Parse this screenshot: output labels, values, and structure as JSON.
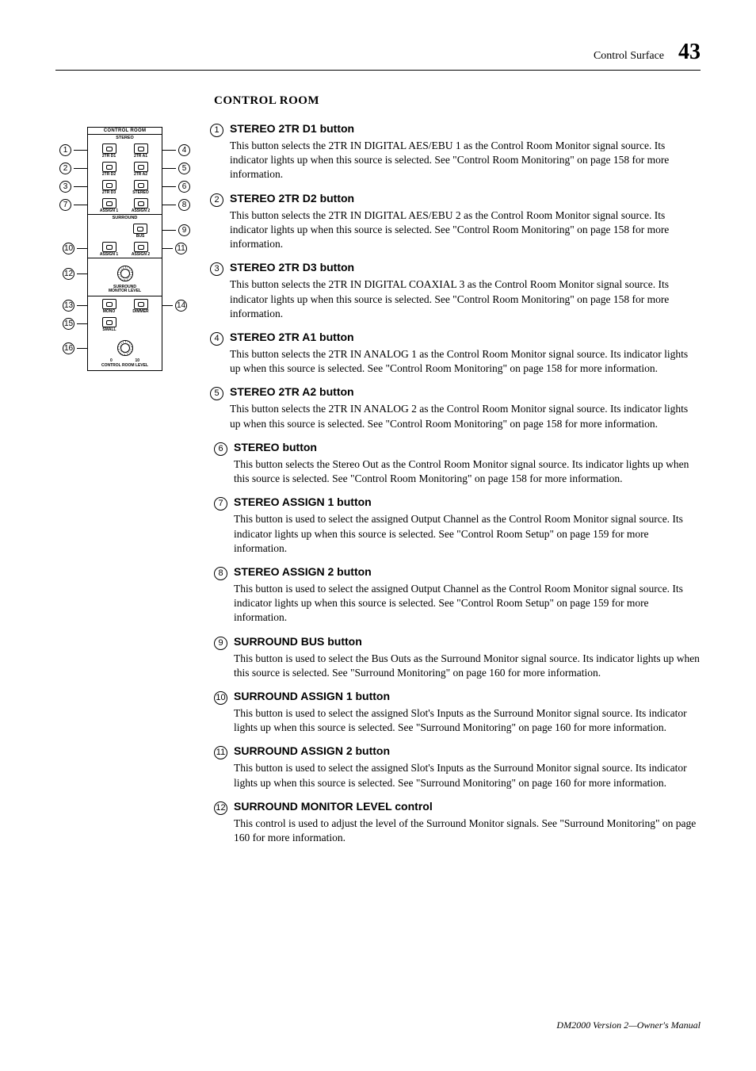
{
  "header": {
    "section": "Control Surface",
    "page": "43"
  },
  "section_title": "CONTROL ROOM",
  "footer": "DM2000 Version 2—Owner's Manual",
  "diagram": {
    "panel_title": "CONTROL ROOM",
    "stereo_title": "STEREO",
    "surround_title": "SURROUND",
    "rows": [
      {
        "left": "2TR D1",
        "right": "2TR A1"
      },
      {
        "left": "2TR D2",
        "right": "2TR A2"
      },
      {
        "left": "2TR D3",
        "right": "STEREO"
      },
      {
        "left": "ASSIGN 1",
        "right": "ASSIGN 2"
      }
    ],
    "bus_label": "BUS",
    "surround_assign": {
      "left": "ASSIGN 1",
      "right": "ASSIGN 2"
    },
    "knob1_label": "SURROUND\nMONITOR LEVEL",
    "mono_dimmer": {
      "left": "MONO",
      "right": "DIMMER"
    },
    "small_label": "SMALL",
    "knob2_label": "CONTROL ROOM LEVEL",
    "scale_min": "0",
    "scale_max": "10"
  },
  "items": [
    {
      "num": "1",
      "title": "STEREO 2TR D1 button",
      "body": "This button selects the 2TR IN DIGITAL AES/EBU 1 as the Control Room Monitor signal source. Its indicator lights up when this source is selected. See \"Control Room Monitoring\" on page 158 for more information.",
      "narrow": true
    },
    {
      "num": "2",
      "title": "STEREO 2TR D2 button",
      "body": "This button selects the 2TR IN DIGITAL AES/EBU 2 as the Control Room Monitor signal source. Its indicator lights up when this source is selected. See \"Control Room Monitoring\" on page 158 for more information.",
      "narrow": true
    },
    {
      "num": "3",
      "title": "STEREO 2TR D3 button",
      "body": "This button selects the 2TR IN DIGITAL COAXIAL 3 as the Control Room Monitor signal source. Its indicator lights up when this source is selected. See \"Control Room Monitoring\" on page 158 for more information.",
      "narrow": true
    },
    {
      "num": "4",
      "title": "STEREO 2TR A1 button",
      "body": "This button selects the 2TR IN ANALOG 1 as the Control Room Monitor signal source. Its indicator lights up when this source is selected. See \"Control Room Monitoring\" on page 158 for more information.",
      "narrow": true
    },
    {
      "num": "5",
      "title": "STEREO 2TR A2 button",
      "body": "This button selects the 2TR IN ANALOG 2 as the Control Room Monitor signal source. Its indicator lights up when this source is selected. See \"Control Room Monitoring\" on page 158 for more information.",
      "narrow": true
    },
    {
      "num": "6",
      "title": "STEREO button",
      "body": "This button selects the Stereo Out as the Control Room Monitor signal source. Its indicator lights up when this source is selected. See \"Control Room Monitoring\" on page 158 for more information.",
      "narrow": false
    },
    {
      "num": "7",
      "title": "STEREO ASSIGN 1 button",
      "body": "This button is used to select the assigned Output Channel as the Control Room Monitor signal source. Its indicator lights up when this source is selected. See \"Control Room Setup\" on page 159 for more information.",
      "narrow": false
    },
    {
      "num": "8",
      "title": "STEREO ASSIGN 2 button",
      "body": "This button is used to select the assigned Output Channel as the Control Room Monitor signal source. Its indicator lights up when this source is selected. See \"Control Room Setup\" on page 159 for more information.",
      "narrow": false
    },
    {
      "num": "9",
      "title": "SURROUND BUS button",
      "body": "This button is used to select the Bus Outs as the Surround Monitor signal source. Its indicator lights up when this source is selected. See \"Surround Monitoring\" on page 160 for more information.",
      "narrow": false
    },
    {
      "num": "10",
      "title": "SURROUND ASSIGN 1 button",
      "body": "This button is used to select the assigned Slot's Inputs as the Surround Monitor signal source. Its indicator lights up when this source is selected. See \"Surround Monitoring\" on page 160 for more information.",
      "narrow": false
    },
    {
      "num": "11",
      "title": "SURROUND ASSIGN 2 button",
      "body": "This button is used to select the assigned Slot's Inputs as the Surround Monitor signal source. Its indicator lights up when this source is selected. See \"Surround Monitoring\" on page 160 for more information.",
      "narrow": false
    },
    {
      "num": "12",
      "title": "SURROUND MONITOR LEVEL control",
      "body": "This control is used to adjust the level of the Surround Monitor signals. See \"Surround Monitoring\" on page 160 for more information.",
      "narrow": false
    }
  ],
  "callouts": {
    "left": [
      "1",
      "2",
      "3",
      "7",
      "10",
      "12",
      "13",
      "15",
      "16"
    ],
    "right": [
      "4",
      "5",
      "6",
      "8",
      "9",
      "11",
      "14"
    ]
  }
}
